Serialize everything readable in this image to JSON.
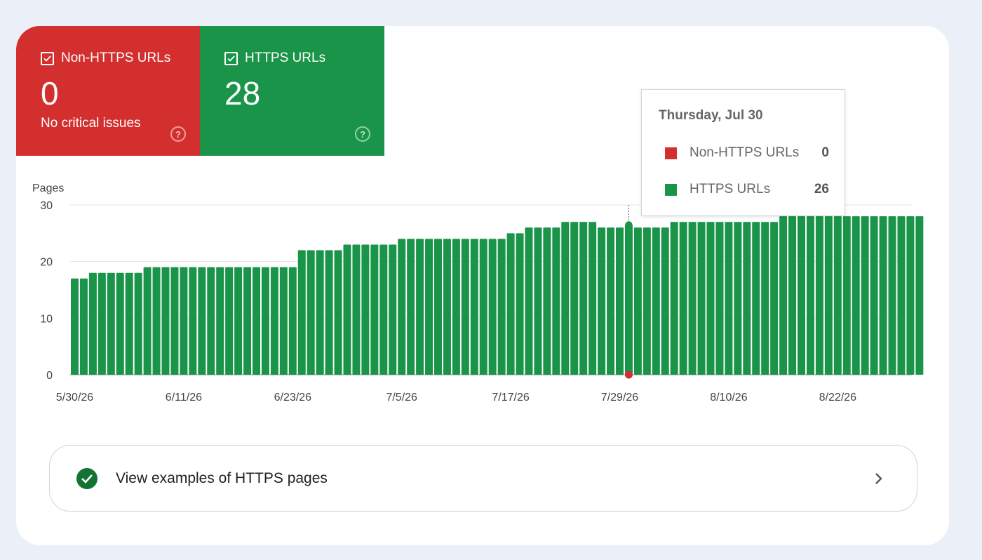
{
  "tiles": {
    "non_https": {
      "label": "Non-HTTPS URLs",
      "value": "0",
      "sub": "No critical issues",
      "color": "#d32f2f"
    },
    "https": {
      "label": "HTTPS URLs",
      "value": "28",
      "color": "#1a9449"
    }
  },
  "tooltip": {
    "title": "Thursday, Jul 30",
    "rows": [
      {
        "label": "Non-HTTPS URLs",
        "value": "0",
        "color": "#d32f2f"
      },
      {
        "label": "HTTPS URLs",
        "value": "26",
        "color": "#1a9449"
      }
    ]
  },
  "examples": {
    "label": "View examples of HTTPS pages"
  },
  "chart_data": {
    "type": "bar",
    "ylabel": "Pages",
    "ylim": [
      0,
      30
    ],
    "yticks": [
      0,
      10,
      20,
      30
    ],
    "xtick_labels": [
      "5/30/26",
      "6/11/26",
      "6/23/26",
      "7/5/26",
      "7/17/26",
      "7/29/26",
      "8/10/26",
      "8/22/26"
    ],
    "series": [
      {
        "name": "HTTPS URLs",
        "color": "#1a9449",
        "values": [
          17,
          17,
          18,
          18,
          18,
          18,
          18,
          18,
          19,
          19,
          19,
          19,
          19,
          19,
          19,
          19,
          19,
          19,
          19,
          19,
          19,
          19,
          19,
          19,
          19,
          22,
          22,
          22,
          22,
          22,
          23,
          23,
          23,
          23,
          23,
          23,
          24,
          24,
          24,
          24,
          24,
          24,
          24,
          24,
          24,
          24,
          24,
          24,
          25,
          25,
          26,
          26,
          26,
          26,
          27,
          27,
          27,
          27,
          26,
          26,
          26,
          26.5,
          26,
          26,
          26,
          26,
          27,
          27,
          27,
          27,
          27,
          27,
          27,
          27,
          27,
          27,
          27,
          27,
          28,
          28,
          28,
          28,
          28,
          28,
          28,
          28,
          28,
          28,
          28,
          28,
          28,
          28,
          28,
          28
        ]
      },
      {
        "name": "Non-HTTPS URLs",
        "color": "#d32f2f",
        "values": [
          0,
          0,
          0,
          0,
          0,
          0,
          0,
          0,
          0,
          0,
          0,
          0,
          0,
          0,
          0,
          0,
          0,
          0,
          0,
          0,
          0,
          0,
          0,
          0,
          0,
          0,
          0,
          0,
          0,
          0,
          0,
          0,
          0,
          0,
          0,
          0,
          0,
          0,
          0,
          0,
          0,
          0,
          0,
          0,
          0,
          0,
          0,
          0,
          0,
          0,
          0,
          0,
          0,
          0,
          0,
          0,
          0,
          0,
          0,
          0,
          0,
          0,
          0,
          0,
          0,
          0,
          0,
          0,
          0,
          0,
          0,
          0,
          0,
          0,
          0,
          0,
          0,
          0,
          0,
          0,
          0,
          0,
          0,
          0,
          0,
          0,
          0,
          0,
          0,
          0,
          0,
          0,
          0,
          0
        ]
      }
    ],
    "highlight_index": 61,
    "grid": true
  }
}
